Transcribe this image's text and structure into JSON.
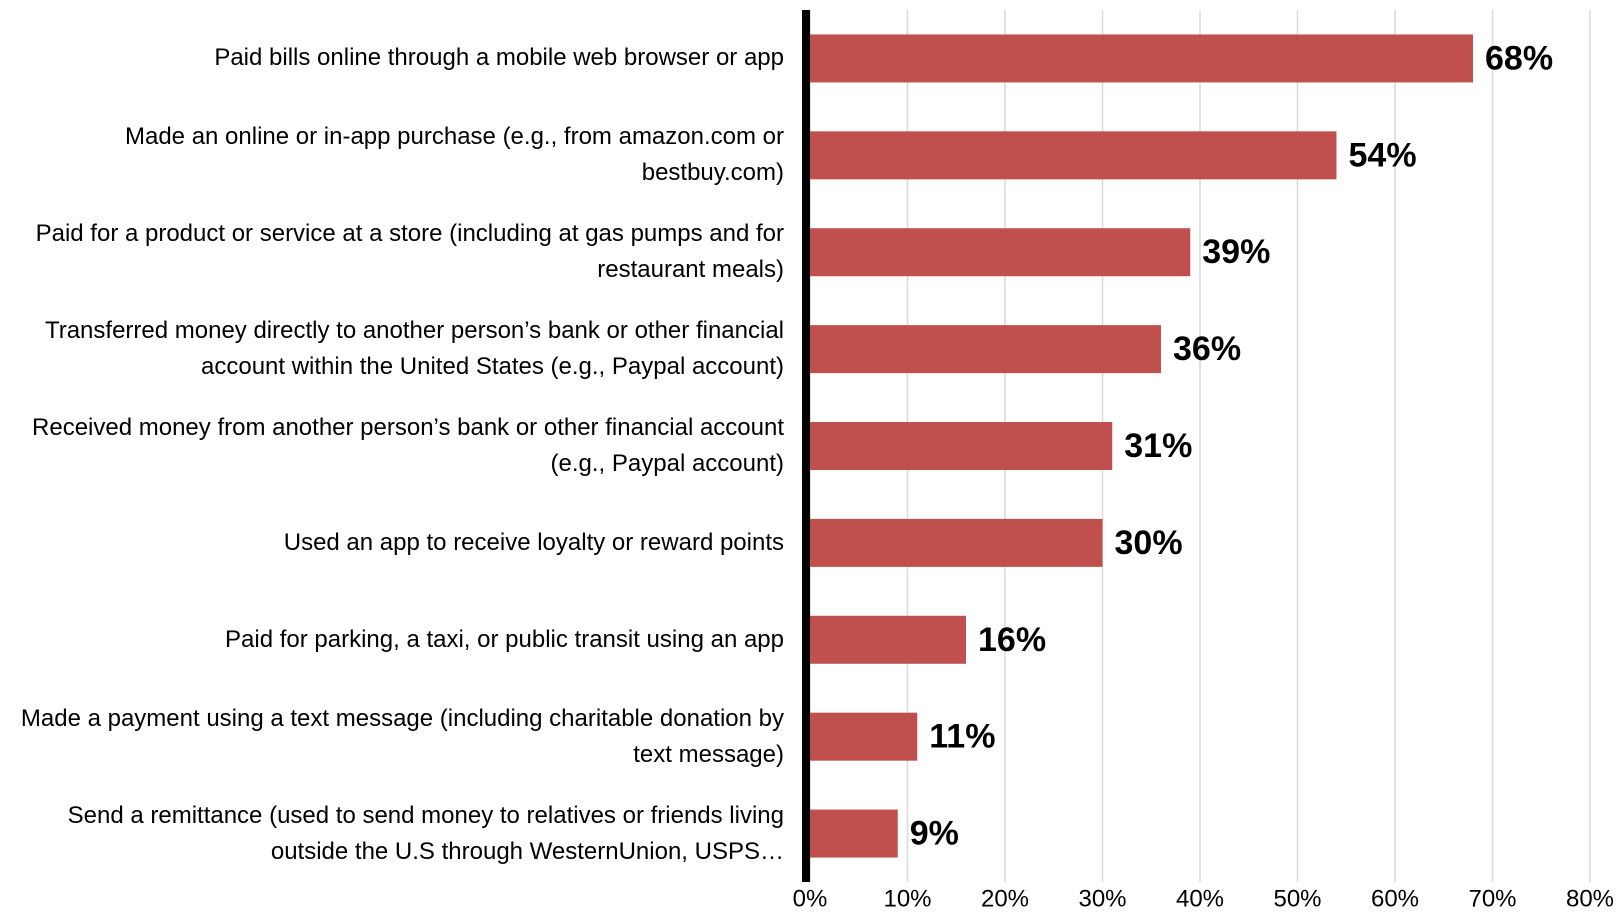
{
  "chart_data": {
    "type": "bar",
    "orientation": "horizontal",
    "categories": [
      "Paid bills online through a mobile web browser or app",
      "Made an online or in-app purchase (e.g., from amazon.com or bestbuy.com)",
      "Paid for a product or service at a store (including at gas pumps and for restaurant meals)",
      "Transferred money directly to another person’s bank or other financial account within the United States (e.g., Paypal account)",
      "Received money from another person’s bank or other financial account (e.g., Paypal account)",
      "Used an app to receive loyalty or reward points",
      "Paid for parking, a taxi, or public transit using an app",
      "Made a payment using a text message (including charitable donation by text message)",
      "Send a remittance (used to send money to relatives or friends living outside the U.S through WesternUnion, USPS…"
    ],
    "values": [
      68,
      54,
      39,
      36,
      31,
      30,
      16,
      11,
      9
    ],
    "value_labels": [
      "68%",
      "54%",
      "39%",
      "36%",
      "31%",
      "30%",
      "16%",
      "11%",
      "9%"
    ],
    "color": "#c0504d",
    "xlim": [
      0,
      80
    ],
    "xticks": [
      {
        "value": 0,
        "label": "0%"
      },
      {
        "value": 10,
        "label": "10%"
      },
      {
        "value": 20,
        "label": "20%"
      },
      {
        "value": 30,
        "label": "30%"
      },
      {
        "value": 40,
        "label": "40%"
      },
      {
        "value": 50,
        "label": "50%"
      },
      {
        "value": 60,
        "label": "60%"
      },
      {
        "value": 70,
        "label": "70%"
      },
      {
        "value": 80,
        "label": "80%"
      }
    ],
    "grid": true
  }
}
